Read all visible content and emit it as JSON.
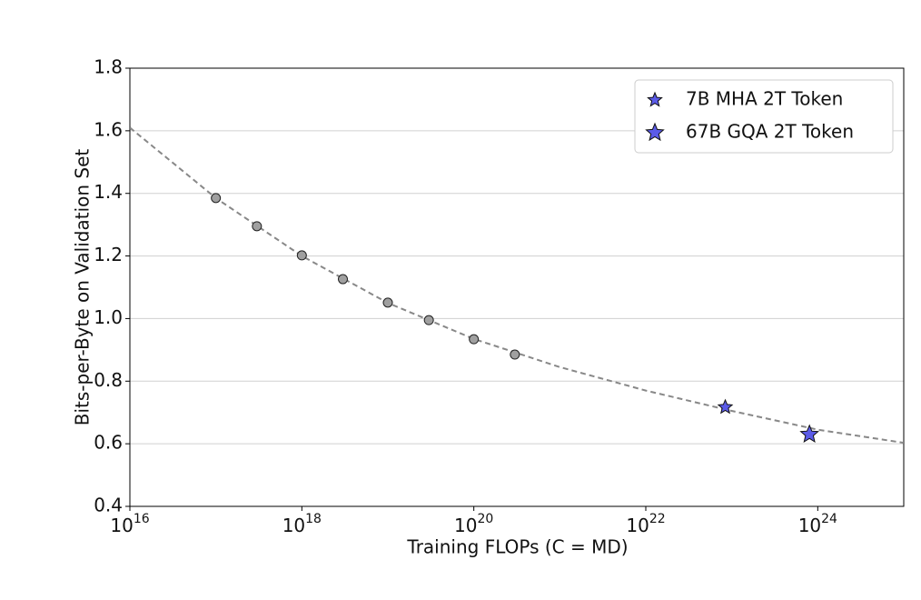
{
  "chart_data": {
    "type": "scatter",
    "x_label": "Training FLOPs (C = MD)",
    "y_label": "Bits-per-Byte on Validation Set",
    "x_scale": "log",
    "xlim": [
      1e+16,
      1e+25
    ],
    "xticks": [
      {
        "value": 1e+16,
        "label": "10^16"
      },
      {
        "value": 1e+18,
        "label": "10^18"
      },
      {
        "value": 1e+20,
        "label": "10^20"
      },
      {
        "value": 1e+22,
        "label": "10^22"
      },
      {
        "value": 1e+24,
        "label": "10^24"
      }
    ],
    "ylim": [
      0.4,
      1.8
    ],
    "yticks": [
      0.4,
      0.6,
      0.8,
      {
        "value": 1.0,
        "label": "1.0"
      },
      1.2,
      1.4,
      1.6,
      1.8
    ],
    "grid": true,
    "legend": "upper right",
    "fit_line": {
      "color": "#888888",
      "x": [
        1e+16,
        1e+17,
        1e+18,
        1e+19,
        1e+20,
        1e+21,
        1e+22,
        1e+23,
        1e+24,
        1e+25
      ],
      "values": [
        1.61,
        1.385,
        1.2,
        1.05,
        0.935,
        0.845,
        0.77,
        0.705,
        0.645,
        0.603
      ]
    },
    "points": {
      "color": "#a0a0a0",
      "x": [
        1e+17,
        3e+17,
        1e+18,
        3e+18,
        1e+19,
        3e+19,
        1e+20,
        3e+20
      ],
      "values": [
        1.385,
        1.295,
        1.202,
        1.126,
        1.051,
        0.995,
        0.934,
        0.885
      ]
    },
    "series": [
      {
        "name": "7B MHA 2T Token",
        "color": "#5b5be8",
        "x": [
          8.4e+22
        ],
        "values": [
          0.717
        ]
      },
      {
        "name": "67B GQA 2T Token",
        "color": "#5b5be8",
        "x": [
          8e+23
        ],
        "values": [
          0.63
        ]
      }
    ]
  }
}
